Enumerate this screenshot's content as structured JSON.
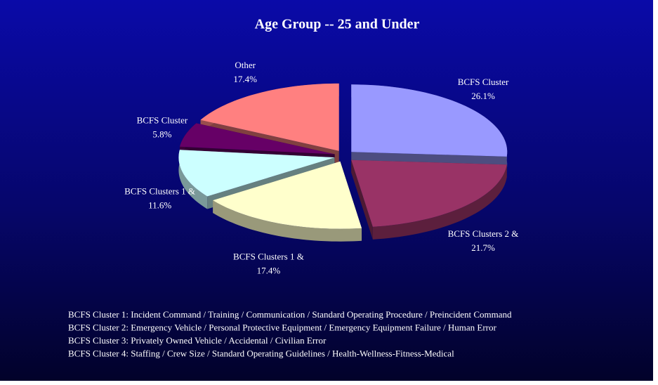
{
  "chart_data": {
    "type": "pie",
    "title": "Age Group -- 25 and Under",
    "categories": [
      "BCFS Cluster",
      "BCFS Clusters 2 &",
      "BCFS Clusters 1 &",
      "BCFS Clusters 1 &",
      "BCFS Cluster",
      "Other"
    ],
    "values": [
      26.1,
      21.7,
      17.4,
      11.6,
      5.8,
      17.4
    ],
    "value_labels": [
      "26.1%",
      "21.7%",
      "17.4%",
      "11.6%",
      "5.8%",
      "17.4%"
    ],
    "colors": [
      "#9999ff",
      "#993366",
      "#ffffcc",
      "#ccffff",
      "#660066",
      "#ff8080"
    ],
    "notes": [
      "BCFS Cluster 1:  Incident Command / Training / Communication / Standard Operating Procedure / Preincident Command",
      "BCFS Cluster 2:  Emergency Vehicle / Personal Protective Equipment / Emergency Equipment Failure / Human Error",
      "BCFS Cluster 3:  Privately Owned Vehicle / Accidental / Civilian Error",
      "BCFS Cluster 4:  Staffing / Crew Size / Standard Operating Guidelines / Health-Wellness-Fitness-Medical"
    ]
  }
}
